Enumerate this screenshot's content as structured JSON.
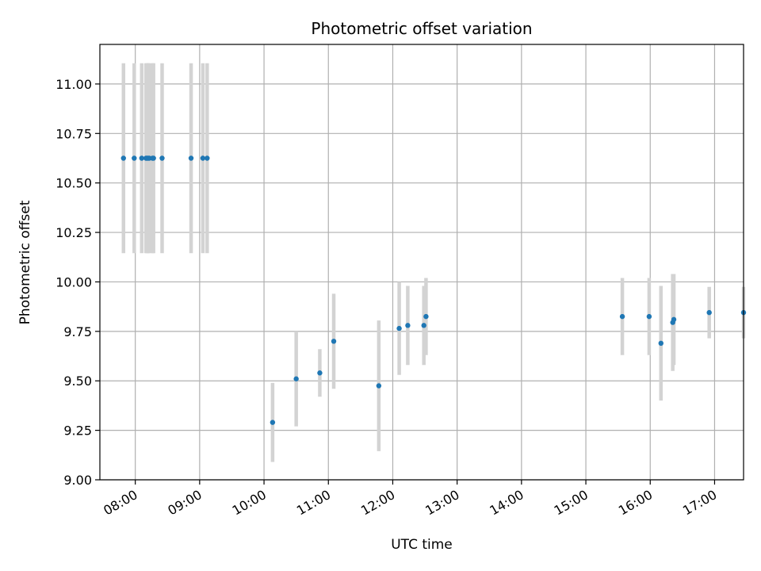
{
  "chart_data": {
    "type": "scatter",
    "title": "Photometric offset variation",
    "xlabel": "UTC time",
    "ylabel": "Photometric offset",
    "x_unit": "UTC time",
    "xlim": [
      "07:27",
      "17:27"
    ],
    "ylim": [
      9.0,
      11.2
    ],
    "x_ticks": [
      "08:00",
      "09:00",
      "10:00",
      "11:00",
      "12:00",
      "13:00",
      "14:00",
      "15:00",
      "16:00",
      "17:00"
    ],
    "y_ticks": [
      "9.00",
      "9.25",
      "9.50",
      "9.75",
      "10.00",
      "10.25",
      "10.50",
      "10.75",
      "11.00"
    ],
    "grid": true,
    "colors": {
      "point": "#1f77b4",
      "errorbar": "#d3d3d3",
      "grid": "#b0b0b0",
      "axis": "#000000"
    },
    "points": [
      {
        "x": "07:49",
        "y": 10.625,
        "err": 0.48
      },
      {
        "x": "07:59",
        "y": 10.625,
        "err": 0.48
      },
      {
        "x": "08:06",
        "y": 10.625,
        "err": 0.48
      },
      {
        "x": "08:10",
        "y": 10.625,
        "err": 0.48
      },
      {
        "x": "08:11",
        "y": 10.625,
        "err": 0.48
      },
      {
        "x": "08:12",
        "y": 10.625,
        "err": 0.48
      },
      {
        "x": "08:13",
        "y": 10.625,
        "err": 0.48
      },
      {
        "x": "08:16",
        "y": 10.625,
        "err": 0.48
      },
      {
        "x": "08:17",
        "y": 10.625,
        "err": 0.48
      },
      {
        "x": "08:25",
        "y": 10.625,
        "err": 0.48
      },
      {
        "x": "08:52",
        "y": 10.625,
        "err": 0.48
      },
      {
        "x": "09:03",
        "y": 10.625,
        "err": 0.48
      },
      {
        "x": "09:07",
        "y": 10.625,
        "err": 0.48
      },
      {
        "x": "10:08",
        "y": 9.29,
        "err": 0.2
      },
      {
        "x": "10:30",
        "y": 9.51,
        "err": 0.24
      },
      {
        "x": "10:52",
        "y": 9.54,
        "err": 0.12
      },
      {
        "x": "11:05",
        "y": 9.7,
        "err": 0.24
      },
      {
        "x": "11:47",
        "y": 9.475,
        "err": 0.33
      },
      {
        "x": "12:06",
        "y": 9.765,
        "err": 0.235
      },
      {
        "x": "12:14",
        "y": 9.78,
        "err": 0.2
      },
      {
        "x": "12:29",
        "y": 9.78,
        "err": 0.2
      },
      {
        "x": "12:31",
        "y": 9.825,
        "err": 0.195
      },
      {
        "x": "15:34",
        "y": 9.825,
        "err": 0.195
      },
      {
        "x": "15:59",
        "y": 9.825,
        "err": 0.195
      },
      {
        "x": "16:10",
        "y": 9.69,
        "err": 0.29
      },
      {
        "x": "16:21",
        "y": 9.795,
        "err": 0.245
      },
      {
        "x": "16:22",
        "y": 9.81,
        "err": 0.23
      },
      {
        "x": "16:55",
        "y": 9.845,
        "err": 0.13
      },
      {
        "x": "17:27",
        "y": 9.845,
        "err": 0.13
      }
    ]
  }
}
